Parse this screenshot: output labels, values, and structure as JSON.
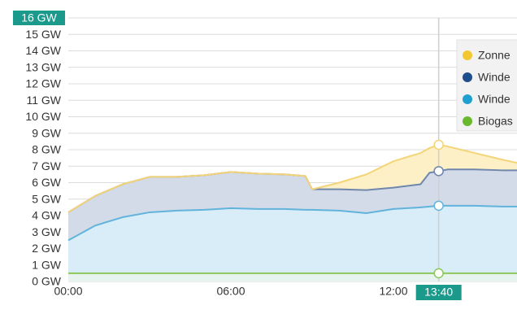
{
  "chart_data": {
    "type": "stacked_area",
    "x": [
      0,
      1,
      2,
      3,
      4,
      5,
      6,
      7,
      8,
      8.75,
      9,
      10,
      11,
      12,
      13,
      13.33,
      13.67,
      14,
      15,
      16,
      16.56
    ],
    "xlim": [
      0,
      16.56
    ],
    "xticks": [
      {
        "value": 0,
        "label": "00:00"
      },
      {
        "value": 6,
        "label": "06:00"
      },
      {
        "value": 12,
        "label": "12:00"
      }
    ],
    "ylim": [
      0,
      16
    ],
    "yticks": [
      {
        "value": 0,
        "label": "0 GW"
      },
      {
        "value": 1,
        "label": "1 GW"
      },
      {
        "value": 2,
        "label": "2 GW"
      },
      {
        "value": 3,
        "label": "3 GW"
      },
      {
        "value": 4,
        "label": "4 GW"
      },
      {
        "value": 5,
        "label": "5 GW"
      },
      {
        "value": 6,
        "label": "6 GW"
      },
      {
        "value": 7,
        "label": "7 GW"
      },
      {
        "value": 8,
        "label": "8 GW"
      },
      {
        "value": 9,
        "label": "9 GW"
      },
      {
        "value": 10,
        "label": "10 GW"
      },
      {
        "value": 11,
        "label": "11 GW"
      },
      {
        "value": 12,
        "label": "12 GW"
      },
      {
        "value": 13,
        "label": "13 GW"
      },
      {
        "value": 14,
        "label": "14 GW"
      },
      {
        "value": 15,
        "label": "15 GW"
      },
      {
        "value": 16,
        "label": "16 GW"
      }
    ],
    "grid": true,
    "legend": "top-right",
    "crosshair": {
      "value": 13.67,
      "label": "13:40"
    },
    "series": [
      {
        "name": "Zonne",
        "color": "#f2c731",
        "line": "#f3d478",
        "fill": "#fdf0c6",
        "values": [
          0,
          0,
          0,
          0,
          0,
          0,
          0,
          0,
          0,
          0,
          0,
          0.4,
          0.95,
          1.6,
          1.9,
          1.5,
          1.6,
          1.4,
          1.0,
          0.65,
          0.45
        ]
      },
      {
        "name": "Winde",
        "color": "#1f4e8c",
        "line": "#6f86ad",
        "fill": "#d4dbe8",
        "values": [
          1.7,
          1.8,
          2.0,
          2.15,
          2.05,
          2.1,
          2.2,
          2.15,
          2.1,
          2.05,
          1.25,
          1.3,
          1.4,
          1.3,
          1.4,
          2.05,
          2.1,
          2.2,
          2.2,
          2.2,
          2.2
        ]
      },
      {
        "name": "Winde",
        "color": "#1fa0d0",
        "line": "#62b3dc",
        "fill": "#d8edf8",
        "values": [
          2.0,
          2.9,
          3.4,
          3.7,
          3.8,
          3.85,
          3.95,
          3.9,
          3.9,
          3.85,
          3.85,
          3.8,
          3.65,
          3.9,
          4.0,
          4.05,
          4.1,
          4.1,
          4.1,
          4.05,
          4.05
        ]
      },
      {
        "name": "Biogas",
        "color": "#6ab82e",
        "line": "#8cc75a",
        "fill": "#e6f3ee",
        "values": [
          0.5,
          0.5,
          0.5,
          0.5,
          0.5,
          0.5,
          0.5,
          0.5,
          0.5,
          0.5,
          0.5,
          0.5,
          0.5,
          0.5,
          0.5,
          0.5,
          0.5,
          0.5,
          0.5,
          0.5,
          0.5
        ]
      }
    ]
  }
}
